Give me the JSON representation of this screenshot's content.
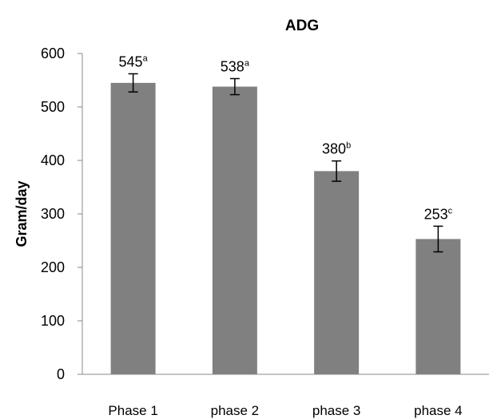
{
  "chart_data": {
    "type": "bar",
    "title": "ADG",
    "xlabel": "",
    "ylabel": "Gram/day",
    "ylim": [
      0,
      600
    ],
    "yticks": [
      0,
      100,
      200,
      300,
      400,
      500,
      600
    ],
    "categories": [
      "Phase 1",
      "phase 2",
      "phase 3",
      "phase 4"
    ],
    "values": [
      545,
      538,
      380,
      253
    ],
    "errors": [
      17,
      15,
      19,
      24
    ],
    "data_labels": [
      {
        "value": "545",
        "sup": "a"
      },
      {
        "value": "538",
        "sup": "a"
      },
      {
        "value": "380",
        "sup": "b"
      },
      {
        "value": "253",
        "sup": "c"
      }
    ],
    "bar_color": "#808080",
    "grid": false,
    "legend": "none"
  }
}
